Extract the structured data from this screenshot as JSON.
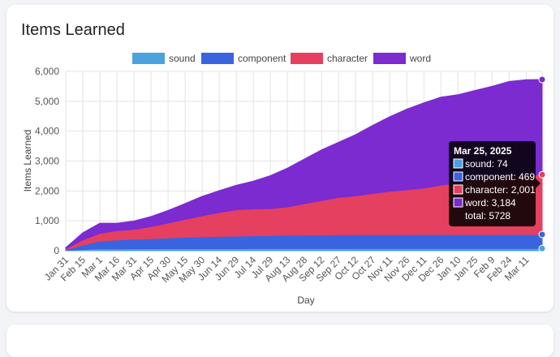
{
  "card": {
    "title": "Items Learned"
  },
  "chart_data": {
    "type": "area",
    "stacked": true,
    "title": "",
    "xlabel": "Day",
    "ylabel": "Items Learned",
    "ylim": [
      0,
      6000
    ],
    "yticks": [
      "0",
      "1,000",
      "2,000",
      "3,000",
      "4,000",
      "5,000",
      "6,000"
    ],
    "x_tick_labels": [
      "Jan 31",
      "Feb 15",
      "Mar 1",
      "Mar 16",
      "Mar 31",
      "Apr 15",
      "Apr 30",
      "May 15",
      "May 30",
      "Jun 14",
      "Jun 29",
      "Jul 14",
      "Jul 29",
      "Aug 13",
      "Aug 28",
      "Sep 12",
      "Sep 27",
      "Oct 12",
      "Oct 27",
      "Nov 11",
      "Nov 26",
      "Dec 11",
      "Dec 26",
      "Jan 10",
      "Jan 25",
      "Feb 9",
      "Feb 24",
      "Mar 11"
    ],
    "x": [
      "2024-01-31",
      "2024-02-15",
      "2024-03-01",
      "2024-03-16",
      "2024-03-31",
      "2024-04-15",
      "2024-04-30",
      "2024-05-15",
      "2024-05-30",
      "2024-06-14",
      "2024-06-29",
      "2024-07-14",
      "2024-07-29",
      "2024-08-13",
      "2024-08-28",
      "2024-09-12",
      "2024-09-27",
      "2024-10-12",
      "2024-10-27",
      "2024-11-11",
      "2024-11-26",
      "2024-12-11",
      "2024-12-26",
      "2025-01-10",
      "2025-01-25",
      "2025-02-09",
      "2025-02-24",
      "2025-03-11",
      "2025-03-25"
    ],
    "grid": true,
    "legend_position": "top",
    "series": [
      {
        "name": "sound",
        "color": "#4aa3df",
        "values": [
          10,
          40,
          60,
          60,
          65,
          65,
          66,
          68,
          68,
          69,
          69,
          70,
          70,
          70,
          71,
          71,
          71,
          72,
          72,
          72,
          72,
          73,
          73,
          73,
          73,
          73,
          74,
          74,
          74
        ]
      },
      {
        "name": "component",
        "color": "#3a63e0",
        "values": [
          20,
          150,
          260,
          300,
          320,
          340,
          360,
          380,
          400,
          410,
          420,
          430,
          440,
          445,
          450,
          455,
          460,
          462,
          463,
          464,
          465,
          466,
          467,
          467,
          468,
          468,
          468,
          469,
          469
        ]
      },
      {
        "name": "character",
        "color": "#e5405f",
        "values": [
          30,
          170,
          260,
          310,
          330,
          400,
          500,
          600,
          700,
          800,
          880,
          900,
          900,
          950,
          1050,
          1150,
          1250,
          1300,
          1380,
          1450,
          1500,
          1560,
          1650,
          1730,
          1800,
          1880,
          1930,
          1970,
          2001
        ]
      },
      {
        "name": "word",
        "color": "#7b2bcf",
        "values": [
          40,
          240,
          340,
          250,
          280,
          340,
          420,
          530,
          650,
          730,
          820,
          930,
          1100,
          1300,
          1500,
          1700,
          1850,
          2050,
          2280,
          2500,
          2700,
          2850,
          2950,
          2950,
          3020,
          3080,
          3190,
          3210,
          3184
        ]
      }
    ],
    "tooltip": {
      "title": "Mar 25, 2025",
      "lines": [
        "sound: 74",
        "component: 469",
        "character: 2,001",
        "word: 3,184"
      ],
      "total": "total: 5728"
    }
  }
}
